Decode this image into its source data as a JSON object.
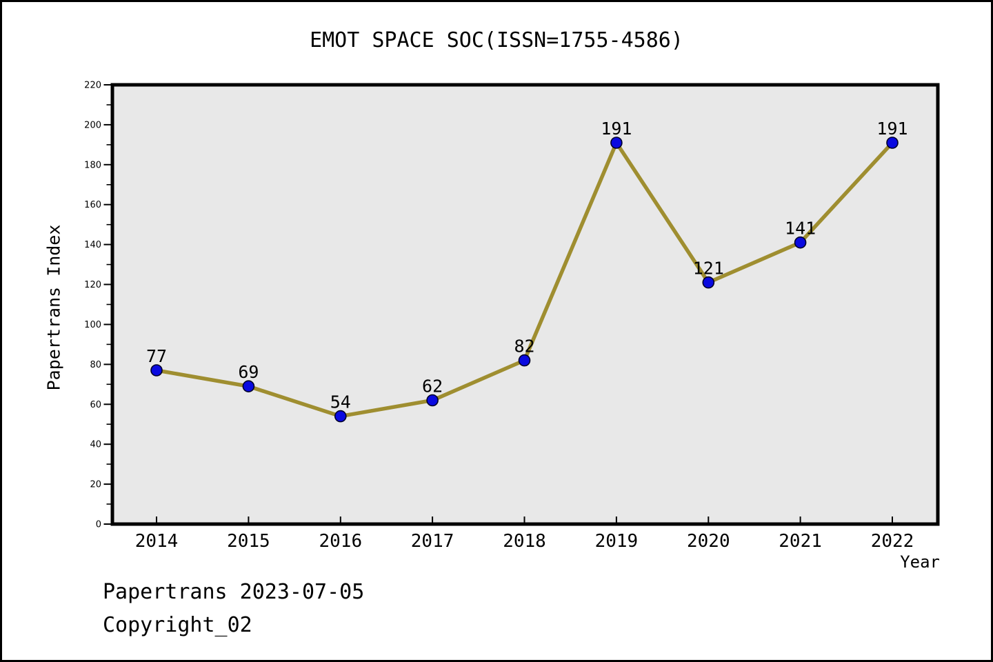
{
  "footer": {
    "line1": "Papertrans 2023-07-05",
    "line2": "Copyright_02"
  },
  "chart_data": {
    "type": "line",
    "title": "EMOT SPACE SOC(ISSN=1755-4586)",
    "xlabel": "Year",
    "ylabel": "Papertrans Index",
    "x": [
      2014,
      2015,
      2016,
      2017,
      2018,
      2019,
      2020,
      2021,
      2022
    ],
    "series": [
      {
        "name": "Papertrans Index",
        "values": [
          77,
          69,
          54,
          62,
          82,
          191,
          121,
          141,
          191
        ]
      }
    ],
    "point_labels": [
      77,
      69,
      54,
      62,
      82,
      191,
      121,
      141,
      191
    ],
    "ylim": [
      0,
      220
    ],
    "ytick_step": 20,
    "ytick_minor_step": 10,
    "grid": false,
    "legend": "none",
    "colors": {
      "line": "#9f8e30",
      "marker_fill": "#0a0ae0",
      "marker_edge": "#000028",
      "plot_bg": "#e8e8e8",
      "frame": "#000000",
      "text": "#000000",
      "page_bg": "#ffffff"
    }
  }
}
